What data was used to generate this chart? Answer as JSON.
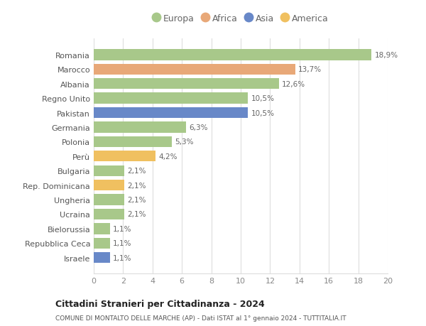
{
  "countries": [
    "Romania",
    "Marocco",
    "Albania",
    "Regno Unito",
    "Pakistan",
    "Germania",
    "Polonia",
    "Perù",
    "Bulgaria",
    "Rep. Dominicana",
    "Ungheria",
    "Ucraina",
    "Bielorussia",
    "Repubblica Ceca",
    "Israele"
  ],
  "values": [
    18.9,
    13.7,
    12.6,
    10.5,
    10.5,
    6.3,
    5.3,
    4.2,
    2.1,
    2.1,
    2.1,
    2.1,
    1.1,
    1.1,
    1.1
  ],
  "labels": [
    "18,9%",
    "13,7%",
    "12,6%",
    "10,5%",
    "10,5%",
    "6,3%",
    "5,3%",
    "4,2%",
    "2,1%",
    "2,1%",
    "2,1%",
    "2,1%",
    "1,1%",
    "1,1%",
    "1,1%"
  ],
  "continents": [
    "Europa",
    "Africa",
    "Europa",
    "Europa",
    "Asia",
    "Europa",
    "Europa",
    "America",
    "Europa",
    "America",
    "Europa",
    "Europa",
    "Europa",
    "Europa",
    "Asia"
  ],
  "colors": {
    "Europa": "#a8c88a",
    "Africa": "#e8a878",
    "Asia": "#6888c8",
    "America": "#f0c060"
  },
  "legend_order": [
    "Europa",
    "Africa",
    "Asia",
    "America"
  ],
  "title": "Cittadini Stranieri per Cittadinanza - 2024",
  "subtitle": "COMUNE DI MONTALTO DELLE MARCHE (AP) - Dati ISTAT al 1° gennaio 2024 - TUTTITALIA.IT",
  "xlim": [
    0,
    20
  ],
  "xticks": [
    0,
    2,
    4,
    6,
    8,
    10,
    12,
    14,
    16,
    18,
    20
  ],
  "bg_color": "#ffffff",
  "grid_color": "#dddddd"
}
